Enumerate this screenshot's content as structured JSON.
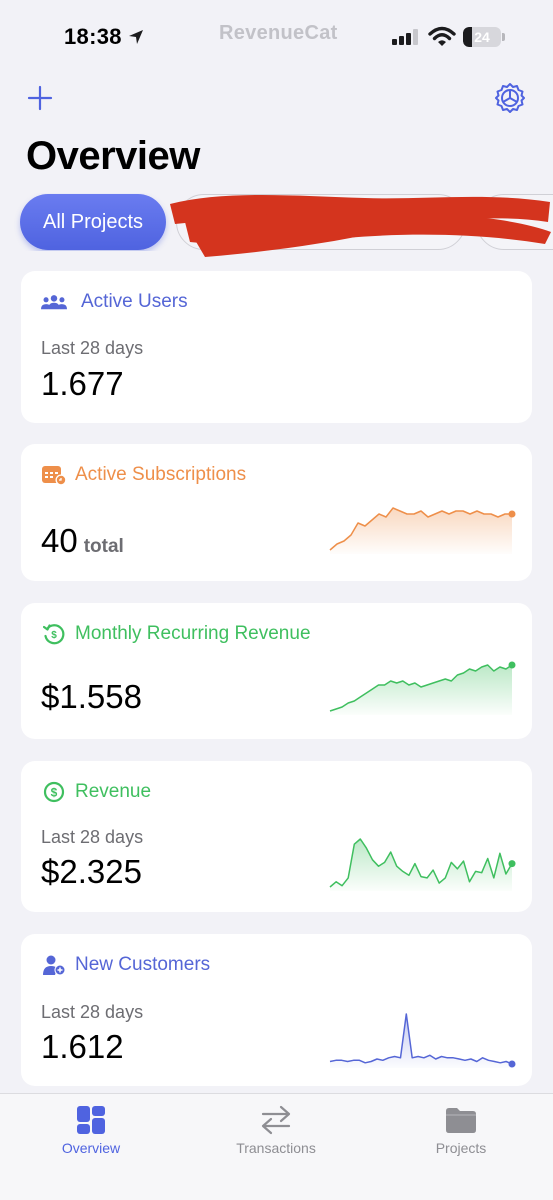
{
  "status_bar": {
    "time": "18:38",
    "app_brand": "RevenueCat",
    "battery_level": "24",
    "battery_fraction": 0.24
  },
  "header": {
    "title": "Overview",
    "add_icon": "plus-icon",
    "settings_icon": "gear-icon"
  },
  "filters": {
    "active_label": "All Projects",
    "other_chips_redacted": true
  },
  "cards": {
    "active_users": {
      "title": "Active Users",
      "icon": "users-icon",
      "color": "#5566d6",
      "period": "Last 28 days",
      "value": "1.677"
    },
    "active_subscriptions": {
      "title": "Active Subscriptions",
      "icon": "calendar-badge-icon",
      "color": "#ee8f4a",
      "value": "40",
      "unit": "total",
      "trend": [
        5,
        7,
        8,
        10,
        14,
        13,
        15,
        17,
        16,
        19,
        18,
        17,
        17,
        18,
        16,
        17,
        18,
        17,
        18,
        18,
        17,
        18,
        17,
        17,
        16,
        17,
        17
      ]
    },
    "mrr": {
      "title": "Monthly Recurring Revenue",
      "icon": "recurring-dollar-icon",
      "color": "#3fbf5f",
      "value": "$1.558",
      "trend": [
        10,
        11,
        12,
        14,
        15,
        17,
        19,
        21,
        23,
        23,
        25,
        24,
        25,
        23,
        24,
        22,
        23,
        24,
        25,
        26,
        25,
        28,
        29,
        31,
        30,
        32,
        33,
        30,
        32,
        31,
        33
      ]
    },
    "revenue": {
      "title": "Revenue",
      "icon": "dollar-circle-icon",
      "color": "#3fbf5f",
      "period": "Last 28 days",
      "value": "$2.325",
      "trend": [
        3,
        7,
        4,
        10,
        36,
        40,
        33,
        24,
        19,
        22,
        30,
        19,
        15,
        12,
        21,
        11,
        10,
        16,
        6,
        10,
        22,
        17,
        23,
        7,
        15,
        14,
        25,
        10,
        29,
        13,
        21
      ]
    },
    "new_customers": {
      "title": "New Customers",
      "icon": "add-user-icon",
      "color": "#5566d6",
      "period": "Last 28 days",
      "value": "1.612",
      "trend": [
        6,
        7,
        7,
        6,
        7,
        7,
        5,
        6,
        8,
        7,
        9,
        10,
        9,
        44,
        9,
        10,
        9,
        11,
        8,
        10,
        9,
        9,
        8,
        7,
        8,
        6,
        9,
        7,
        6,
        5,
        6,
        4
      ]
    }
  },
  "tab_bar": {
    "items": [
      {
        "label": "Overview",
        "icon": "dashboard-icon",
        "active": true
      },
      {
        "label": "Transactions",
        "icon": "swap-arrows-icon",
        "active": false
      },
      {
        "label": "Projects",
        "icon": "folder-icon",
        "active": false
      }
    ]
  }
}
